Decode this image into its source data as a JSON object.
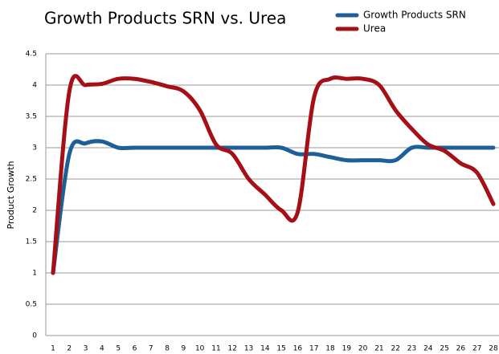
{
  "chart_data": {
    "type": "line",
    "title": "Growth Products SRN vs. Urea",
    "y_label": "Product Growth",
    "categories": [
      "1",
      "2",
      "3",
      "4",
      "5",
      "6",
      "7",
      "8",
      "9",
      "10",
      "11",
      "12",
      "13",
      "14",
      "15",
      "16",
      "17",
      "18",
      "19",
      "20",
      "21",
      "22",
      "23",
      "24",
      "25",
      "26",
      "27",
      "28"
    ],
    "series": [
      {
        "name": "Growth Products SRN",
        "color": "#1f5f99",
        "values": [
          1.0,
          2.9,
          3.07,
          3.1,
          3.0,
          3.0,
          3.0,
          3.0,
          3.0,
          3.0,
          3.0,
          3.0,
          3.0,
          3.0,
          3.0,
          2.9,
          2.9,
          2.85,
          2.8,
          2.8,
          2.8,
          2.8,
          3.0,
          3.0,
          3.0,
          3.0,
          3.0,
          3.0
        ]
      },
      {
        "name": "Urea",
        "color": "#a50f15",
        "values": [
          1.0,
          3.9,
          4.0,
          4.02,
          4.1,
          4.1,
          4.05,
          3.98,
          3.9,
          3.6,
          3.05,
          2.9,
          2.5,
          2.25,
          2.0,
          1.97,
          3.8,
          4.1,
          4.1,
          4.1,
          4.0,
          3.6,
          3.3,
          3.05,
          2.95,
          2.75,
          2.6,
          2.1
        ]
      }
    ],
    "ylim": [
      0,
      4.5
    ],
    "yticks": [
      0,
      0.5,
      1,
      1.5,
      2,
      2.5,
      3,
      3.5,
      4,
      4.5
    ],
    "grid": true,
    "legend": "top-right"
  }
}
